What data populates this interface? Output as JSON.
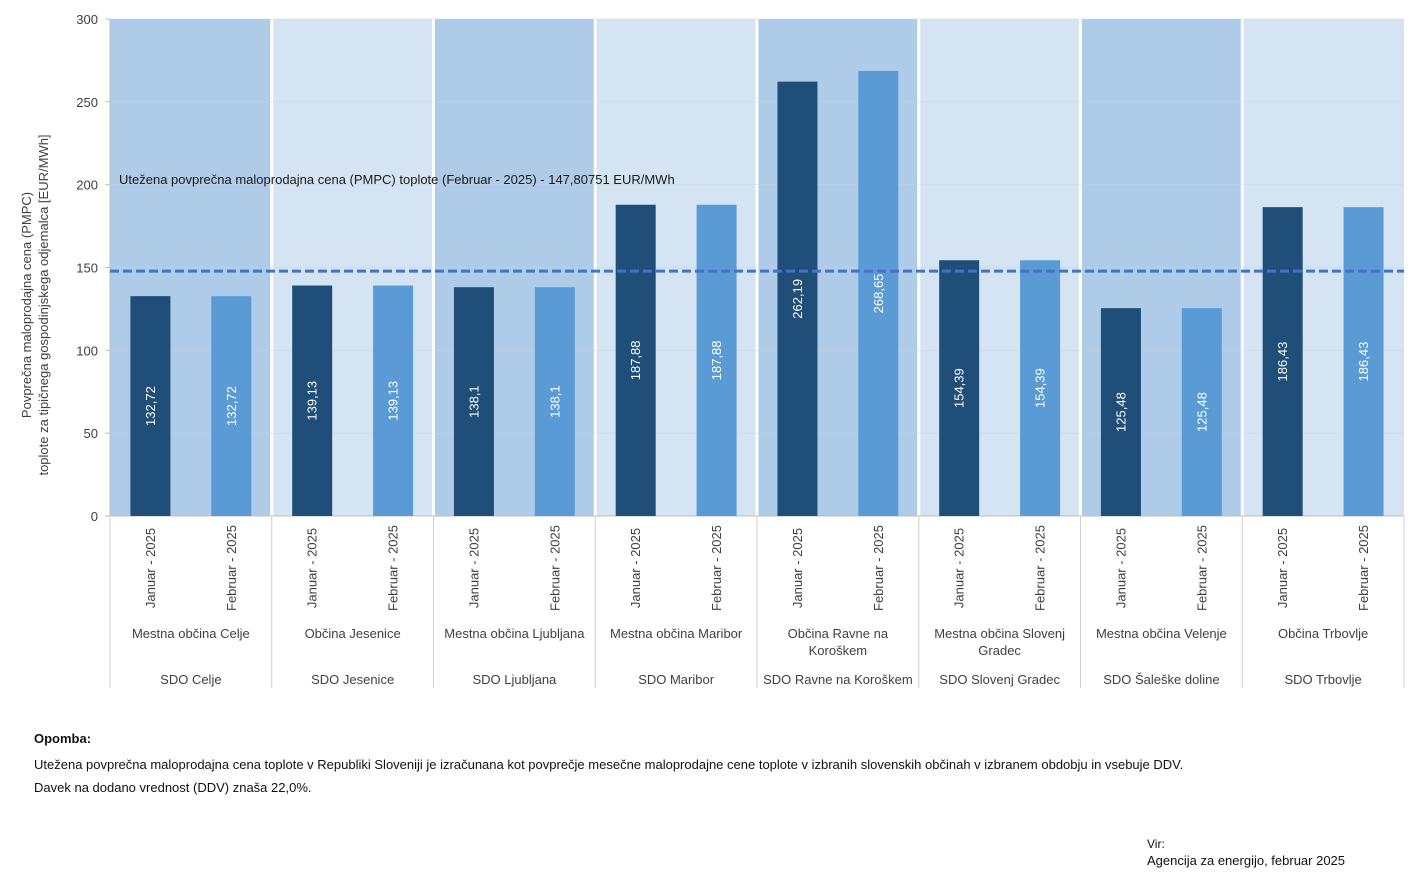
{
  "chart_data": {
    "type": "bar",
    "ylabel_line1": "Povprečna maloprodajna cena (PMPC)",
    "ylabel_line2": "toplote za tipičnega gospodinjskega odjemalca  [EUR/MWh]",
    "ylim": [
      0,
      300
    ],
    "yticks": [
      "0",
      "50",
      "100",
      "150",
      "200",
      "250",
      "300"
    ],
    "ytick_values": [
      0,
      50,
      100,
      150,
      200,
      250,
      300
    ],
    "reference_line": {
      "value": 147.80751,
      "label": "Utežena povprečna maloprodajna cena (PMPC) toplote (Februar - 2025) - 147,80751  EUR/MWh",
      "color": "#4472C4"
    },
    "colors": {
      "januar": "#1F4E79",
      "februar": "#5B9BD5",
      "band_dark": "#AECBE8",
      "band_light": "#D4E4F3"
    },
    "groups": [
      {
        "sdo": "SDO Celje",
        "municipality": [
          "Mestna občina Celje"
        ],
        "bars": [
          {
            "period": "Januar - 2025",
            "value": 132.72,
            "label": "132,72"
          },
          {
            "period": "Februar - 2025",
            "value": 132.72,
            "label": "132,72"
          }
        ]
      },
      {
        "sdo": "SDO Jesenice",
        "municipality": [
          "Občina Jesenice"
        ],
        "bars": [
          {
            "period": "Januar - 2025",
            "value": 139.13,
            "label": "139,13"
          },
          {
            "period": "Februar - 2025",
            "value": 139.13,
            "label": "139,13"
          }
        ]
      },
      {
        "sdo": "SDO Ljubljana",
        "municipality": [
          "Mestna občina Ljubljana"
        ],
        "bars": [
          {
            "period": "Januar - 2025",
            "value": 138.1,
            "label": "138,1"
          },
          {
            "period": "Februar - 2025",
            "value": 138.1,
            "label": "138,1"
          }
        ]
      },
      {
        "sdo": "SDO Maribor",
        "municipality": [
          "Mestna občina Maribor"
        ],
        "bars": [
          {
            "period": "Januar - 2025",
            "value": 187.88,
            "label": "187,88"
          },
          {
            "period": "Februar - 2025",
            "value": 187.88,
            "label": "187,88"
          }
        ]
      },
      {
        "sdo": "SDO Ravne na Koroškem",
        "municipality": [
          "Občina Ravne na",
          "Koroškem"
        ],
        "bars": [
          {
            "period": "Januar - 2025",
            "value": 262.19,
            "label": "262,19"
          },
          {
            "period": "Februar - 2025",
            "value": 268.65,
            "label": "268,65"
          }
        ]
      },
      {
        "sdo": "SDO Slovenj Gradec",
        "municipality": [
          "Mestna občina Slovenj",
          "Gradec"
        ],
        "bars": [
          {
            "period": "Januar - 2025",
            "value": 154.39,
            "label": "154,39"
          },
          {
            "period": "Februar - 2025",
            "value": 154.39,
            "label": "154,39"
          }
        ]
      },
      {
        "sdo": "SDO Šaleške doline",
        "municipality": [
          "Mestna občina Velenje"
        ],
        "bars": [
          {
            "period": "Januar - 2025",
            "value": 125.48,
            "label": "125,48"
          },
          {
            "period": "Februar - 2025",
            "value": 125.48,
            "label": "125,48"
          }
        ]
      },
      {
        "sdo": "SDO Trbovlje",
        "municipality": [
          "Občina Trbovlje"
        ],
        "bars": [
          {
            "period": "Januar - 2025",
            "value": 186.43,
            "label": "186,43"
          },
          {
            "period": "Februar - 2025",
            "value": 186.43,
            "label": "186,43"
          }
        ]
      }
    ]
  },
  "notes": {
    "title": "Opomba:",
    "line1": "Utežena povprečna maloprodajna cena toplote v Republiki Sloveniji je izračunana kot povprečje mesečne maloprodajne cene toplote v izbranih slovenskih občinah v izbranem obdobju in vsebuje DDV.",
    "line2": "Davek na dodano vrednost (DDV) znaša 22,0%."
  },
  "source": {
    "label": "Vir:",
    "text": "Agencija za energijo, februar 2025"
  }
}
